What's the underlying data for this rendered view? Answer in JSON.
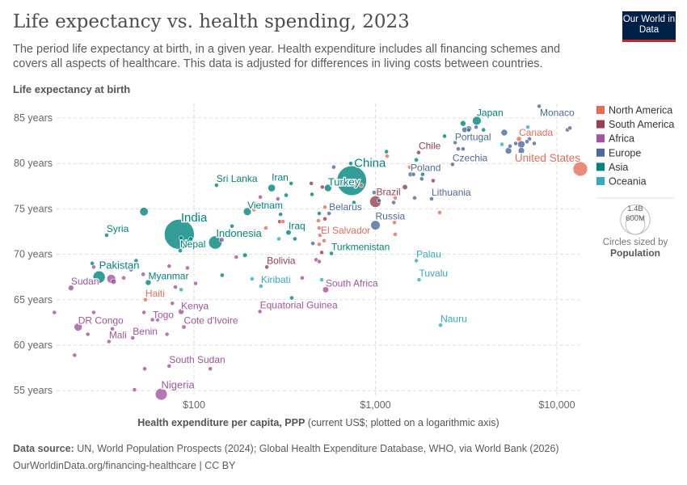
{
  "header": {
    "title": "Life expectancy vs. health spending, 2023",
    "subtitle": "The period life expectancy at birth, in a given year. Health expenditure includes all financing schemes and covers all aspects of healthcare. This data is adjusted for differences in living costs between countries.",
    "logo": "Our World in Data"
  },
  "footer": {
    "source_label": "Data source:",
    "source": "UN, World Population Prospects (2024); Global Health Expenditure Database, WHO, via World Bank (2026)",
    "url": "OurWorldinData.org/financing-healthcare | CC BY"
  },
  "chart_data": {
    "type": "scatter",
    "title": "Life expectancy vs. health spending, 2023",
    "ylabel": "Life expectancy at birth",
    "xlabel_bold": "Health expenditure per capita, PPP",
    "xlabel_rest": "(current US$; plotted on a logarithmic axis)",
    "x_scale": "log",
    "xlim": [
      15,
      14500
    ],
    "ylim": [
      54,
      86.5
    ],
    "x_ticks": [
      {
        "value": 100,
        "label": "$100"
      },
      {
        "value": 1000,
        "label": "$1,000"
      },
      {
        "value": 10000,
        "label": "$10,000"
      }
    ],
    "y_ticks": [
      {
        "value": 55,
        "label": "55 years"
      },
      {
        "value": 60,
        "label": "60 years"
      },
      {
        "value": 65,
        "label": "65 years"
      },
      {
        "value": 70,
        "label": "70 years"
      },
      {
        "value": 75,
        "label": "75 years"
      },
      {
        "value": 80,
        "label": "80 years"
      },
      {
        "value": 85,
        "label": "85 years"
      }
    ],
    "grid": true,
    "legend_position": "right",
    "regions": [
      {
        "key": "NA",
        "name": "North America",
        "color": "#e56e5a"
      },
      {
        "key": "SA",
        "name": "South America",
        "color": "#9a3e50"
      },
      {
        "key": "AF",
        "name": "Africa",
        "color": "#a2559c"
      },
      {
        "key": "EU",
        "name": "Europe",
        "color": "#4c6a9c"
      },
      {
        "key": "AS",
        "name": "Asia",
        "color": "#00847e"
      },
      {
        "key": "OC",
        "name": "Oceania",
        "color": "#38aaba"
      }
    ],
    "size_legend": {
      "title": "Circles sized by",
      "variable": "Population",
      "values": [
        {
          "label": "1.4B",
          "pop": 1400
        },
        {
          "label": "600M",
          "pop": 600
        }
      ]
    },
    "points": [
      {
        "name": "India",
        "region": "AS",
        "x": 83,
        "y": 72.2,
        "pop": 1438
      },
      {
        "name": "China",
        "region": "AS",
        "x": 740,
        "y": 78.1,
        "pop": 1410
      },
      {
        "name": "United States",
        "region": "NA",
        "x": 13460,
        "y": 79.4,
        "pop": 335
      },
      {
        "name": "Nigeria",
        "region": "AF",
        "x": 66,
        "y": 54.6,
        "pop": 224
      },
      {
        "name": "Indonesia",
        "region": "AS",
        "x": 131,
        "y": 71.3,
        "pop": 280
      },
      {
        "name": "Pakistan",
        "region": "AS",
        "x": 30,
        "y": 67.5,
        "pop": 240
      },
      {
        "name": "Brazil",
        "region": "SA",
        "x": 1000,
        "y": 75.8,
        "pop": 211
      },
      {
        "name": "Russia",
        "region": "EU",
        "x": 1000,
        "y": 73.2,
        "pop": 144
      },
      {
        "name": "Japan",
        "region": "AS",
        "x": 3620,
        "y": 84.7,
        "pop": 124
      },
      {
        "name": "Turkey",
        "region": "AS",
        "x": 548,
        "y": 77.3,
        "pop": 86
      },
      {
        "name": "Vietnam",
        "region": "AS",
        "x": 197,
        "y": 74.7,
        "pop": 100
      },
      {
        "name": "Sri Lanka",
        "region": "AS",
        "x": 133,
        "y": 77.6,
        "pop": 22
      },
      {
        "name": "Iran",
        "region": "AS",
        "x": 268,
        "y": 77.3,
        "pop": 90
      },
      {
        "name": "Syria",
        "region": "AS",
        "x": 33,
        "y": 72.1,
        "pop": 23
      },
      {
        "name": "Nepal",
        "region": "AS",
        "x": 84,
        "y": 70.4,
        "pop": 30
      },
      {
        "name": "Myanmar",
        "region": "AS",
        "x": 56,
        "y": 66.9,
        "pop": 54
      },
      {
        "name": "Sudan",
        "region": "AF",
        "x": 21,
        "y": 66.3,
        "pop": 50
      },
      {
        "name": "Haiti",
        "region": "NA",
        "x": 54,
        "y": 65.0,
        "pop": 12
      },
      {
        "name": "Kenya",
        "region": "AF",
        "x": 85,
        "y": 63.7,
        "pop": 55
      },
      {
        "name": "Togo",
        "region": "AF",
        "x": 63,
        "y": 62.8,
        "pop": 9
      },
      {
        "name": "Cote d'Ivoire",
        "region": "AF",
        "x": 88,
        "y": 62.0,
        "pop": 31
      },
      {
        "name": "DR Congo",
        "region": "AF",
        "x": 23,
        "y": 62.0,
        "pop": 105
      },
      {
        "name": "Mali",
        "region": "AF",
        "x": 34,
        "y": 60.4,
        "pop": 23
      },
      {
        "name": "Benin",
        "region": "AF",
        "x": 46,
        "y": 60.8,
        "pop": 14
      },
      {
        "name": "South Sudan",
        "region": "AF",
        "x": 73,
        "y": 57.7,
        "pop": 11
      },
      {
        "name": "Iraq",
        "region": "AS",
        "x": 332,
        "y": 72.4,
        "pop": 45
      },
      {
        "name": "Bolivia",
        "region": "SA",
        "x": 252,
        "y": 68.6,
        "pop": 12
      },
      {
        "name": "Kiribati",
        "region": "OC",
        "x": 234,
        "y": 66.5,
        "pop": 1
      },
      {
        "name": "Equatorial Guinea",
        "region": "AF",
        "x": 231,
        "y": 63.7,
        "pop": 2
      },
      {
        "name": "South Africa",
        "region": "AF",
        "x": 532,
        "y": 66.1,
        "pop": 63
      },
      {
        "name": "El Salvador",
        "region": "NA",
        "x": 490,
        "y": 72.9,
        "pop": 6
      },
      {
        "name": "Belarus",
        "region": "EU",
        "x": 555,
        "y": 74.5,
        "pop": 9
      },
      {
        "name": "Turkmenistan",
        "region": "AS",
        "x": 572,
        "y": 70.1,
        "pop": 7
      },
      {
        "name": "Poland",
        "region": "EU",
        "x": 1563,
        "y": 78.8,
        "pop": 37
      },
      {
        "name": "Chile",
        "region": "SA",
        "x": 1730,
        "y": 81.2,
        "pop": 20
      },
      {
        "name": "Czechia",
        "region": "EU",
        "x": 2660,
        "y": 79.9,
        "pop": 11
      },
      {
        "name": "Lithuania",
        "region": "EU",
        "x": 2040,
        "y": 76.1,
        "pop": 3
      },
      {
        "name": "Portugal",
        "region": "EU",
        "x": 3265,
        "y": 83.7,
        "pop": 10
      },
      {
        "name": "Canada",
        "region": "NA",
        "x": 6180,
        "y": 82.7,
        "pop": 40
      },
      {
        "name": "Monaco",
        "region": "EU",
        "x": 7980,
        "y": 86.3,
        "pop": 0.04
      },
      {
        "name": "Palau",
        "region": "OC",
        "x": 1680,
        "y": 69.3,
        "pop": 0.02
      },
      {
        "name": "Tuvalu",
        "region": "OC",
        "x": 1740,
        "y": 67.2,
        "pop": 0.01
      },
      {
        "name": "Nauru",
        "region": "OC",
        "x": 2285,
        "y": 62.2,
        "pop": 0.01
      },
      {
        "name": "",
        "region": "AS",
        "x": 53,
        "y": 74.7,
        "pop": 115
      },
      {
        "name": "",
        "region": "AF",
        "x": 35,
        "y": 67.3,
        "pop": 126
      },
      {
        "name": "",
        "region": "AF",
        "x": 36,
        "y": 67.0,
        "pop": 50
      },
      {
        "name": "",
        "region": "AF",
        "x": 17,
        "y": 63.6
      },
      {
        "name": "",
        "region": "AF",
        "x": 22,
        "y": 58.9
      },
      {
        "name": "",
        "region": "AF",
        "x": 28,
        "y": 63.6
      },
      {
        "name": "",
        "region": "AF",
        "x": 26,
        "y": 61.2
      },
      {
        "name": "",
        "region": "AF",
        "x": 35.5,
        "y": 61.8
      },
      {
        "name": "",
        "region": "AF",
        "x": 53,
        "y": 63.6
      },
      {
        "name": "",
        "region": "AF",
        "x": 59,
        "y": 62.8
      },
      {
        "name": "",
        "region": "AF",
        "x": 71,
        "y": 61.2
      },
      {
        "name": "",
        "region": "AF",
        "x": 76,
        "y": 64.6
      },
      {
        "name": "",
        "region": "AF",
        "x": 79,
        "y": 66.4
      },
      {
        "name": "",
        "region": "AF",
        "x": 73,
        "y": 68.7
      },
      {
        "name": "",
        "region": "AF",
        "x": 92,
        "y": 68.5
      },
      {
        "name": "",
        "region": "AF",
        "x": 102,
        "y": 66.8
      },
      {
        "name": "",
        "region": "AF",
        "x": 41,
        "y": 67.4
      },
      {
        "name": "",
        "region": "AF",
        "x": 52.5,
        "y": 67.8
      },
      {
        "name": "",
        "region": "AS",
        "x": 48,
        "y": 69.3
      },
      {
        "name": "",
        "region": "AS",
        "x": 27.5,
        "y": 69.0
      },
      {
        "name": "",
        "region": "AF",
        "x": 28,
        "y": 68.6
      },
      {
        "name": "",
        "region": "AF",
        "x": 45,
        "y": 68.3
      },
      {
        "name": "",
        "region": "AF",
        "x": 53.5,
        "y": 57.4
      },
      {
        "name": "",
        "region": "AF",
        "x": 123,
        "y": 57.4
      },
      {
        "name": "",
        "region": "AF",
        "x": 47,
        "y": 55.1
      },
      {
        "name": "",
        "region": "AS",
        "x": 96,
        "y": 71.7
      },
      {
        "name": "",
        "region": "AS",
        "x": 85,
        "y": 71.8
      },
      {
        "name": "",
        "region": "OC",
        "x": 85,
        "y": 66.1
      },
      {
        "name": "",
        "region": "AS",
        "x": 191,
        "y": 69.9,
        "pop": 35
      },
      {
        "name": "",
        "region": "AF",
        "x": 171,
        "y": 69.7
      },
      {
        "name": "",
        "region": "AS",
        "x": 143,
        "y": 67.7
      },
      {
        "name": "",
        "region": "AS",
        "x": 162,
        "y": 73.1
      },
      {
        "name": "",
        "region": "AF",
        "x": 142,
        "y": 71.6,
        "pop": 40
      },
      {
        "name": "",
        "region": "NA",
        "x": 214,
        "y": 74.9
      },
      {
        "name": "",
        "region": "AF",
        "x": 232,
        "y": 76.3,
        "pop": 20
      },
      {
        "name": "",
        "region": "AF",
        "x": 290,
        "y": 76.1
      },
      {
        "name": "",
        "region": "AS",
        "x": 322,
        "y": 76.5,
        "pop": 30
      },
      {
        "name": "",
        "region": "AS",
        "x": 300,
        "y": 74.4
      },
      {
        "name": "",
        "region": "SA",
        "x": 297,
        "y": 73.6
      },
      {
        "name": "",
        "region": "NA",
        "x": 309,
        "y": 73.6
      },
      {
        "name": "",
        "region": "NA",
        "x": 249,
        "y": 72.9
      },
      {
        "name": "",
        "region": "OC",
        "x": 294,
        "y": 71.7
      },
      {
        "name": "",
        "region": "AS",
        "x": 360,
        "y": 71.7
      },
      {
        "name": "",
        "region": "AS",
        "x": 343,
        "y": 77.8
      },
      {
        "name": "",
        "region": "SA",
        "x": 443,
        "y": 77.8,
        "pop": 18
      },
      {
        "name": "",
        "region": "AS",
        "x": 447,
        "y": 76.6,
        "pop": 15
      },
      {
        "name": "",
        "region": "SA",
        "x": 510,
        "y": 77.4
      },
      {
        "name": "",
        "region": "EU",
        "x": 589,
        "y": 79.6
      },
      {
        "name": "",
        "region": "NA",
        "x": 527,
        "y": 75.2
      },
      {
        "name": "",
        "region": "AS",
        "x": 490,
        "y": 74.5
      },
      {
        "name": "",
        "region": "NA",
        "x": 485,
        "y": 73.7
      },
      {
        "name": "",
        "region": "SA",
        "x": 527,
        "y": 73.9
      },
      {
        "name": "",
        "region": "NA",
        "x": 495,
        "y": 72.1
      },
      {
        "name": "",
        "region": "NA",
        "x": 521,
        "y": 71.5
      },
      {
        "name": "",
        "region": "EU",
        "x": 452,
        "y": 71.2
      },
      {
        "name": "",
        "region": "NA",
        "x": 490,
        "y": 71.1
      },
      {
        "name": "",
        "region": "SA",
        "x": 506,
        "y": 70.2
      },
      {
        "name": "",
        "region": "AF",
        "x": 471,
        "y": 69.4
      },
      {
        "name": "",
        "region": "AF",
        "x": 490,
        "y": 69.2
      },
      {
        "name": "",
        "region": "OC",
        "x": 506,
        "y": 67.2
      },
      {
        "name": "",
        "region": "AF",
        "x": 395,
        "y": 67.4
      },
      {
        "name": "",
        "region": "AS",
        "x": 346,
        "y": 65.2
      },
      {
        "name": "",
        "region": "OC",
        "x": 209,
        "y": 67.3
      },
      {
        "name": "",
        "region": "AS",
        "x": 731,
        "y": 80.0
      },
      {
        "name": "",
        "region": "AS",
        "x": 1150,
        "y": 81.3
      },
      {
        "name": "",
        "region": "NA",
        "x": 1160,
        "y": 80.8
      },
      {
        "name": "",
        "region": "EU",
        "x": 984,
        "y": 76.8
      },
      {
        "name": "",
        "region": "EU",
        "x": 1047,
        "y": 75.9
      },
      {
        "name": "",
        "region": "NA",
        "x": 1285,
        "y": 76.2
      },
      {
        "name": "",
        "region": "EU",
        "x": 1260,
        "y": 75.7
      },
      {
        "name": "",
        "region": "NA",
        "x": 1273,
        "y": 73.5
      },
      {
        "name": "",
        "region": "NA",
        "x": 1285,
        "y": 72.2
      },
      {
        "name": "",
        "region": "SA",
        "x": 1455,
        "y": 77.4,
        "pop": 45
      },
      {
        "name": "",
        "region": "NA",
        "x": 1545,
        "y": 79.6
      },
      {
        "name": "",
        "region": "EU",
        "x": 1620,
        "y": 78.8,
        "pop": 19
      },
      {
        "name": "",
        "region": "AS",
        "x": 1680,
        "y": 80.4
      },
      {
        "name": "",
        "region": "AS",
        "x": 1820,
        "y": 78.8
      },
      {
        "name": "",
        "region": "EU",
        "x": 1800,
        "y": 78.3
      },
      {
        "name": "",
        "region": "SA",
        "x": 2080,
        "y": 78.1
      },
      {
        "name": "",
        "region": "EU",
        "x": 1645,
        "y": 76.2
      },
      {
        "name": "",
        "region": "NA",
        "x": 2260,
        "y": 74.6
      },
      {
        "name": "",
        "region": "AS",
        "x": 2405,
        "y": 83.0
      },
      {
        "name": "",
        "region": "EU",
        "x": 2750,
        "y": 82.3
      },
      {
        "name": "",
        "region": "EU",
        "x": 2860,
        "y": 81.6
      },
      {
        "name": "",
        "region": "EU",
        "x": 3040,
        "y": 81.6
      },
      {
        "name": "",
        "region": "AS",
        "x": 3040,
        "y": 84.4,
        "pop": 52
      },
      {
        "name": "",
        "region": "EU",
        "x": 3100,
        "y": 83.7,
        "pop": 48
      },
      {
        "name": "",
        "region": "EU",
        "x": 3270,
        "y": 83.8,
        "pop": 59
      },
      {
        "name": "",
        "region": "EU",
        "x": 3590,
        "y": 84.0
      },
      {
        "name": "",
        "region": "AS",
        "x": 3940,
        "y": 83.7
      },
      {
        "name": "",
        "region": "EU",
        "x": 5130,
        "y": 83.4,
        "pop": 68
      },
      {
        "name": "",
        "region": "OC",
        "x": 4980,
        "y": 82.1
      },
      {
        "name": "",
        "region": "EU",
        "x": 5520,
        "y": 81.9
      },
      {
        "name": "",
        "region": "EU",
        "x": 5410,
        "y": 81.4,
        "pop": 68
      },
      {
        "name": "",
        "region": "EU",
        "x": 5930,
        "y": 82.2
      },
      {
        "name": "",
        "region": "EU",
        "x": 6370,
        "y": 82.1,
        "pop": 84
      },
      {
        "name": "",
        "region": "EU",
        "x": 6370,
        "y": 81.4,
        "pop": 66
      },
      {
        "name": "",
        "region": "OC",
        "x": 6920,
        "y": 84.0,
        "pop": 27
      },
      {
        "name": "",
        "region": "EU",
        "x": 7060,
        "y": 82.7
      },
      {
        "name": "",
        "region": "EU",
        "x": 6840,
        "y": 82.4
      },
      {
        "name": "",
        "region": "EU",
        "x": 7500,
        "y": 82.2
      },
      {
        "name": "",
        "region": "EU",
        "x": 11430,
        "y": 83.7
      },
      {
        "name": "",
        "region": "EU",
        "x": 11790,
        "y": 83.9
      },
      {
        "name": "",
        "region": "AS",
        "x": 762,
        "y": 75.7
      },
      {
        "name": "",
        "region": "NA",
        "x": 836,
        "y": 77.6
      }
    ]
  }
}
